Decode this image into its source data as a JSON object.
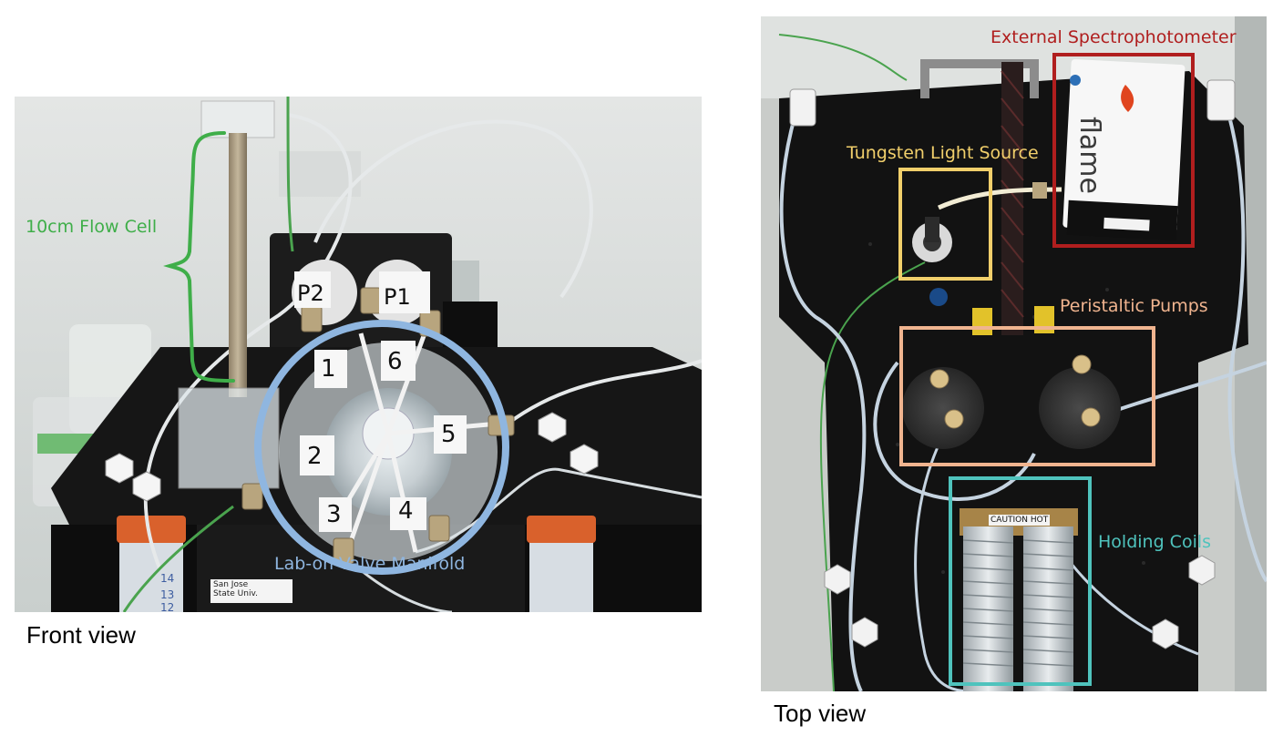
{
  "front": {
    "caption": "Front view",
    "flow_cell_label": "10cm Flow Cell",
    "manifold_label": "Lab-on-Valve Manifold",
    "pump_tags": [
      "P2",
      "P1"
    ],
    "port_numbers": [
      "1",
      "6",
      "5",
      "2",
      "3",
      "4"
    ],
    "sticker_text": "San Jose\nState Univ.",
    "tube_marks": [
      "14",
      "13",
      "12"
    ],
    "colors": {
      "flow_cell": "#3fae49",
      "manifold": "#8fb6e0"
    }
  },
  "top": {
    "caption": "Top view",
    "spectro_label": "External Spectrophotometer",
    "light_label": "Tungsten Light Source",
    "pumps_label": "Peristaltic Pumps",
    "coils_label": "Holding Coils",
    "flame_text": "flame",
    "caution_text": "CAUTION HOT",
    "colors": {
      "spectro": "#b01e1e",
      "light": "#f1cf6b",
      "pumps": "#f0b48f",
      "coils": "#4fc3bd"
    }
  }
}
